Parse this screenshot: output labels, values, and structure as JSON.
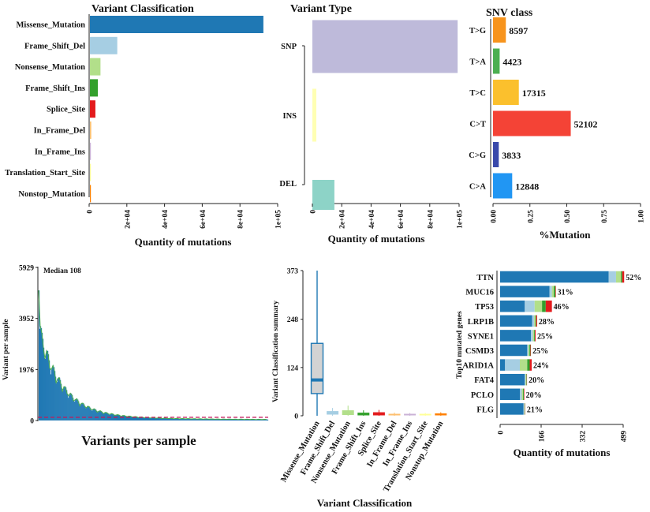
{
  "colors": {
    "Missense_Mutation": "#1f78b4",
    "Frame_Shift_Del": "#a6cee3",
    "Nonsense_Mutation": "#b2df8a",
    "Frame_Shift_Ins": "#33a02c",
    "Splice_Site": "#e31a1c",
    "In_Frame_Del": "#fdbf6f",
    "In_Frame_Ins": "#cab2d6",
    "Translation_Start_Site": "#ffff99",
    "Nonstop_Mutation": "#ff7f00",
    "SNP": "#bebada",
    "INS": "#ffffb3",
    "DEL": "#8dd3c7",
    "T>G": "#f7941d",
    "T>A": "#4caf50",
    "T>C": "#fbc02d",
    "C>T": "#f44336",
    "C>G": "#3949ab",
    "C>A": "#2196f3"
  },
  "chart_data": [
    {
      "id": "variant-classification",
      "type": "bar",
      "orientation": "horizontal",
      "title": "Variant Classification",
      "xlabel": "Quantity of mutations",
      "categories": [
        "Missense_Mutation",
        "Frame_Shift_Del",
        "Nonsense_Mutation",
        "Frame_Shift_Ins",
        "Splice_Site",
        "In_Frame_Del",
        "In_Frame_Ins",
        "Translation_Start_Site",
        "Nonstop_Mutation"
      ],
      "values": [
        92000,
        14500,
        5600,
        4200,
        2900,
        700,
        400,
        150,
        80
      ],
      "xlim": [
        0,
        100000
      ],
      "xticks": [
        "0",
        "2e+04",
        "4e+04",
        "6e+04",
        "8e+04",
        "1e+05"
      ]
    },
    {
      "id": "variant-type",
      "type": "bar",
      "orientation": "horizontal",
      "title": "Variant Type",
      "xlabel": "Quantity of mutations",
      "categories": [
        "SNP",
        "INS",
        "DEL"
      ],
      "values": [
        99000,
        2700,
        15000
      ],
      "xlim": [
        0,
        100000
      ],
      "xticks": [
        "0",
        "2e+04",
        "4e+04",
        "6e+04",
        "8e+04",
        "1e+05"
      ]
    },
    {
      "id": "snv-class",
      "type": "bar",
      "orientation": "horizontal",
      "title": "SNV class",
      "xlabel": "%Mutation",
      "categories": [
        "T>G",
        "T>A",
        "T>C",
        "C>T",
        "C>G",
        "C>A"
      ],
      "values": [
        0.087,
        0.045,
        0.175,
        0.527,
        0.039,
        0.13
      ],
      "labels": [
        "8597",
        "4423",
        "17315",
        "52102",
        "3833",
        "12848"
      ],
      "xlim": [
        0,
        1
      ],
      "xticks": [
        "0.00",
        "0.25",
        "0.50",
        "0.75",
        "1.00"
      ]
    },
    {
      "id": "variants-per-sample",
      "type": "bar",
      "title": "Variants per sample",
      "annotation": "Median 108",
      "median": 108,
      "yticks": [
        "0",
        "1976",
        "3952",
        "5929"
      ],
      "ylim": [
        0,
        5929
      ],
      "ylabel": "Variant per sample"
    },
    {
      "id": "variant-classification-summary",
      "type": "box",
      "ylabel": "Variant Classification summary",
      "xlabel": "Variant Classification",
      "categories": [
        "Missense_Mutation",
        "Frame_Shift_Del",
        "Nonsense_Mutation",
        "Frame_Shift_Ins",
        "Splice_Site",
        "In_Frame_Del",
        "In_Frame_Ins",
        "Translation_Start_Site",
        "Nonstop_Mutation"
      ],
      "boxes": [
        {
          "min": 0,
          "q1": 57,
          "median": 92,
          "q3": 186,
          "max": 373
        },
        {
          "min": 0,
          "q1": 3,
          "median": 6,
          "q3": 12,
          "max": 20
        },
        {
          "min": 0,
          "q1": 2,
          "median": 5,
          "q3": 14,
          "max": 26
        },
        {
          "min": 0,
          "q1": 1,
          "median": 3,
          "q3": 8,
          "max": 14
        },
        {
          "min": 0,
          "q1": 1,
          "median": 3,
          "q3": 9,
          "max": 15
        },
        {
          "min": 0,
          "q1": 1,
          "median": 2,
          "q3": 5,
          "max": 8
        },
        {
          "min": 0,
          "q1": 1,
          "median": 2,
          "q3": 5,
          "max": 7
        },
        {
          "min": 0,
          "q1": 1,
          "median": 2,
          "q3": 5,
          "max": 7
        },
        {
          "min": 0,
          "q1": 1,
          "median": 2,
          "q3": 6,
          "max": 9
        }
      ],
      "ylim": [
        0,
        373
      ],
      "yticks": [
        "0",
        "124",
        "248",
        "373"
      ]
    },
    {
      "id": "top10-mutated-genes",
      "type": "bar",
      "orientation": "horizontal",
      "stacked": true,
      "ylabel": "Top10 mutated genes",
      "xlabel": "Quantity of mutations",
      "genes": [
        "TTN",
        "MUC16",
        "TP53",
        "LRP1B",
        "SYNE1",
        "CSMD3",
        "ARID1A",
        "FAT4",
        "PCLO",
        "FLG"
      ],
      "percent_labels": [
        "52%",
        "31%",
        "46%",
        "28%",
        "25%",
        "25%",
        "24%",
        "20%",
        "20%",
        "21%"
      ],
      "series": [
        {
          "name": "Missense_Mutation",
          "values": [
            440,
            200,
            100,
            130,
            125,
            110,
            20,
            100,
            80,
            95
          ]
        },
        {
          "name": "Frame_Shift_Del",
          "values": [
            30,
            10,
            40,
            8,
            8,
            4,
            60,
            3,
            8,
            3
          ]
        },
        {
          "name": "Nonsense_Mutation",
          "values": [
            20,
            8,
            30,
            5,
            5,
            5,
            30,
            3,
            5,
            2
          ]
        },
        {
          "name": "Frame_Shift_Ins",
          "values": [
            5,
            6,
            15,
            3,
            3,
            4,
            10,
            2,
            3,
            1
          ]
        },
        {
          "name": "Splice_Site",
          "values": [
            8,
            2,
            25,
            4,
            3,
            2,
            8,
            1,
            2,
            1
          ]
        }
      ],
      "xlim": [
        0,
        499
      ],
      "xticks": [
        "0",
        "166",
        "332",
        "499"
      ]
    }
  ]
}
